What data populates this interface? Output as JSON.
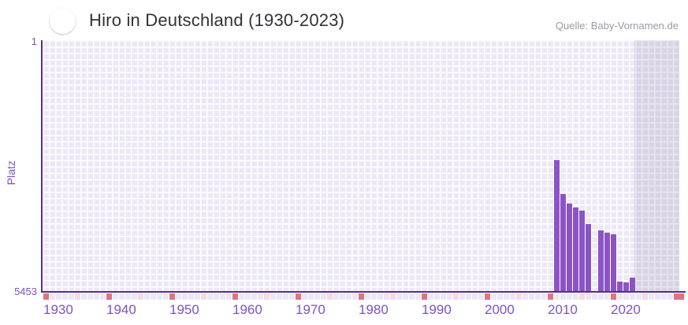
{
  "header": {
    "title": "Hiro in Deutschland (1930-2023)",
    "flag_icon": "germany-flag",
    "source": "Quelle: Baby-Vornamen.de"
  },
  "y_axis": {
    "title": "Platz",
    "max_label": "1",
    "min_label": "5453"
  },
  "x_axis": {
    "decade_labels": [
      1930,
      1940,
      1950,
      1960,
      1970,
      1980,
      1990,
      2000,
      2010,
      2020
    ]
  },
  "chart_data": {
    "type": "bar",
    "title": "Hiro in Deutschland (1930-2023)",
    "xlabel": "",
    "ylabel": "Platz",
    "ylim": [
      1,
      5453
    ],
    "y_inverted": true,
    "x_range_years": [
      1930,
      2030
    ],
    "future_years_start": 2024,
    "grid": true,
    "legend": false,
    "points": [
      {
        "year": 2011,
        "rank": 2600
      },
      {
        "year": 2012,
        "rank": 3350
      },
      {
        "year": 2013,
        "rank": 3550
      },
      {
        "year": 2014,
        "rank": 3630
      },
      {
        "year": 2015,
        "rank": 3710
      },
      {
        "year": 2016,
        "rank": 4000
      },
      {
        "year": 2017,
        "rank": null
      },
      {
        "year": 2018,
        "rank": 4140
      },
      {
        "year": 2019,
        "rank": 4180
      },
      {
        "year": 2020,
        "rank": 4220
      },
      {
        "year": 2021,
        "rank": 5250
      },
      {
        "year": 2022,
        "rank": 5270
      },
      {
        "year": 2023,
        "rank": 5170
      }
    ]
  },
  "colors": {
    "bar": "#8b54c6",
    "axis": "#542d88",
    "grid_cell": "#ece8f7",
    "grid_gutter": "#ffffff",
    "tick_decade": "#e0737e",
    "tick_mid_decade": "#f6d9e1",
    "tick_default": "#ebe7f6",
    "label_purple": "#7d52c1",
    "title_text": "#333238",
    "source_text": "#9b98a5",
    "flag_black": "#1f1d1f",
    "flag_red": "#dd2c33",
    "flag_gold": "#ffcf00"
  }
}
